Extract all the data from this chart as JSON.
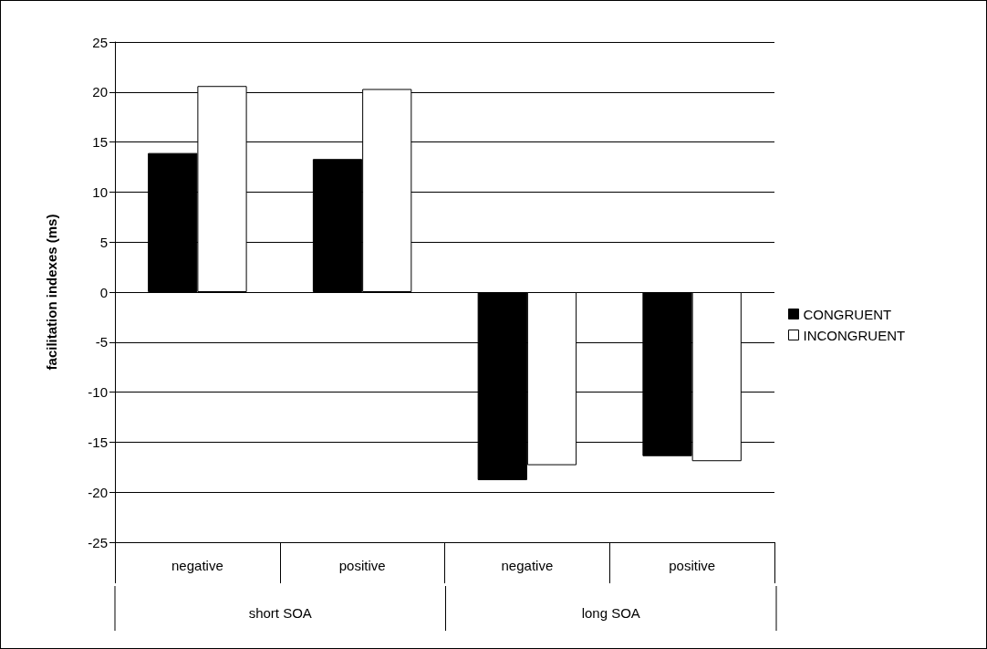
{
  "chart_data": {
    "type": "bar",
    "ylabel": "facilitation indexes (ms)",
    "categories": [
      "negative",
      "positive",
      "negative",
      "positive"
    ],
    "annotations": [
      "short SOA",
      "long SOA"
    ],
    "series": [
      {
        "name": "CONGRUENT",
        "color": "#000000",
        "values": [
          13.9,
          13.3,
          -18.8,
          -16.4
        ]
      },
      {
        "name": "INCONGRUENT",
        "color": "#ffffff",
        "values": [
          20.6,
          20.3,
          -17.3,
          -16.9
        ]
      }
    ],
    "ylim": [
      -25,
      25
    ],
    "yticks": [
      -25,
      -20,
      -15,
      -10,
      -5,
      0,
      5,
      10,
      15,
      20,
      25
    ],
    "grid": "y",
    "legend": "right"
  }
}
